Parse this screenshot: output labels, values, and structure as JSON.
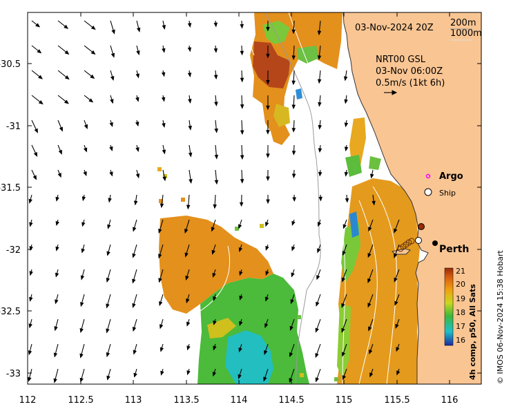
{
  "map": {
    "date_label": "03-Nov-2024 20Z",
    "bathy_legend": [
      "200m",
      "1000m"
    ],
    "current_label": [
      "NRT00 GSL",
      "03-Nov 06:00Z",
      "0.5m/s (1kt 6h)"
    ],
    "argo_label": "Argo",
    "ship_label": "Ship",
    "city_label": "Perth",
    "credit": "© IMOS 06-Nov-2024 15:38 Hobart",
    "colorbar_title": "4h comp, p50, All Sats",
    "colorbar_ticks": [
      "21",
      "20",
      "19",
      "18",
      "17",
      "16"
    ],
    "x_ticks": [
      "112",
      "112.5",
      "113",
      "113.5",
      "114",
      "114.5",
      "115",
      "115.5",
      "116"
    ],
    "y_ticks": [
      "-30.5",
      "-31",
      "-31.5",
      "-32",
      "-32.5",
      "-33"
    ],
    "colors": {
      "land": "#f9c593",
      "argo": "#ff00ff",
      "warm": "#e07a10",
      "cool": "#3cb83c",
      "coldest": "#1ec0c8"
    }
  }
}
